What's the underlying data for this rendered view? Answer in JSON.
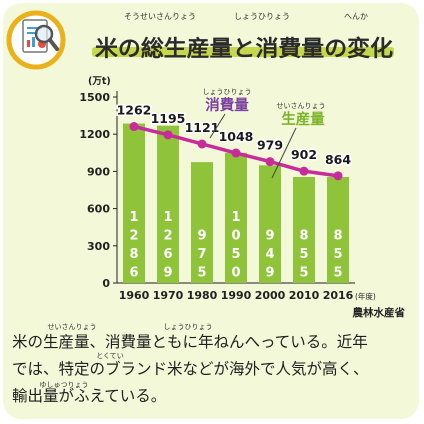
{
  "title": {
    "text": "米の総生産量と消費量の変化",
    "ruby": [
      {
        "text": "そうせいさんりょう",
        "over": "総生産量"
      },
      {
        "text": "しょうひりょう",
        "over": "消費量"
      },
      {
        "text": "へんか",
        "over": "変化"
      }
    ]
  },
  "icon": "report-magnifier-icon",
  "colors": {
    "background": "#f3f8d8",
    "bar": "#8fc33a",
    "bar_text": "#ffffff",
    "line": "#c82c9b",
    "title_bar": "#c4d84b",
    "production_label": "#7bb42a",
    "consumption_label": "#7a3fa0"
  },
  "chart_data": {
    "type": "bar",
    "unit_label": "(万t)",
    "categories": [
      "1960",
      "1970",
      "1980",
      "1990",
      "2000",
      "2010",
      "2016"
    ],
    "x_suffix": "(年度)",
    "ylim": [
      0,
      1500
    ],
    "yticks": [
      0,
      300,
      600,
      900,
      1200,
      1500
    ],
    "grid": false,
    "series": [
      {
        "name": "生産量",
        "ruby": "せいさんりょう",
        "type": "bar",
        "values": [
          1286,
          1269,
          975,
          1050,
          949,
          855,
          855
        ],
        "labels": [
          "1286",
          "1269",
          "975",
          "1050",
          "949",
          "855",
          "855"
        ]
      },
      {
        "name": "消費量",
        "ruby": "しょうひりょう",
        "type": "line",
        "values": [
          1262,
          1195,
          1121,
          1048,
          979,
          902,
          864
        ],
        "labels": [
          "1262",
          "1195",
          "1121",
          "1048",
          "979",
          "902",
          "864"
        ]
      }
    ],
    "source": "農林水産省"
  },
  "caption": {
    "line1": "米の生産量、消費量ともに年ねんへっている。近年",
    "line2": "では、特定のブランド米などが海外で人気が高く、",
    "line3": "輸出量がふえている。",
    "ruby": [
      {
        "text": "せいさんりょう",
        "over": "生産量"
      },
      {
        "text": "しょうひりょう",
        "over": "消費量"
      },
      {
        "text": "とくてい",
        "over": "特定"
      },
      {
        "text": "ゆしゅつりょう",
        "over": "輸出量"
      }
    ]
  }
}
